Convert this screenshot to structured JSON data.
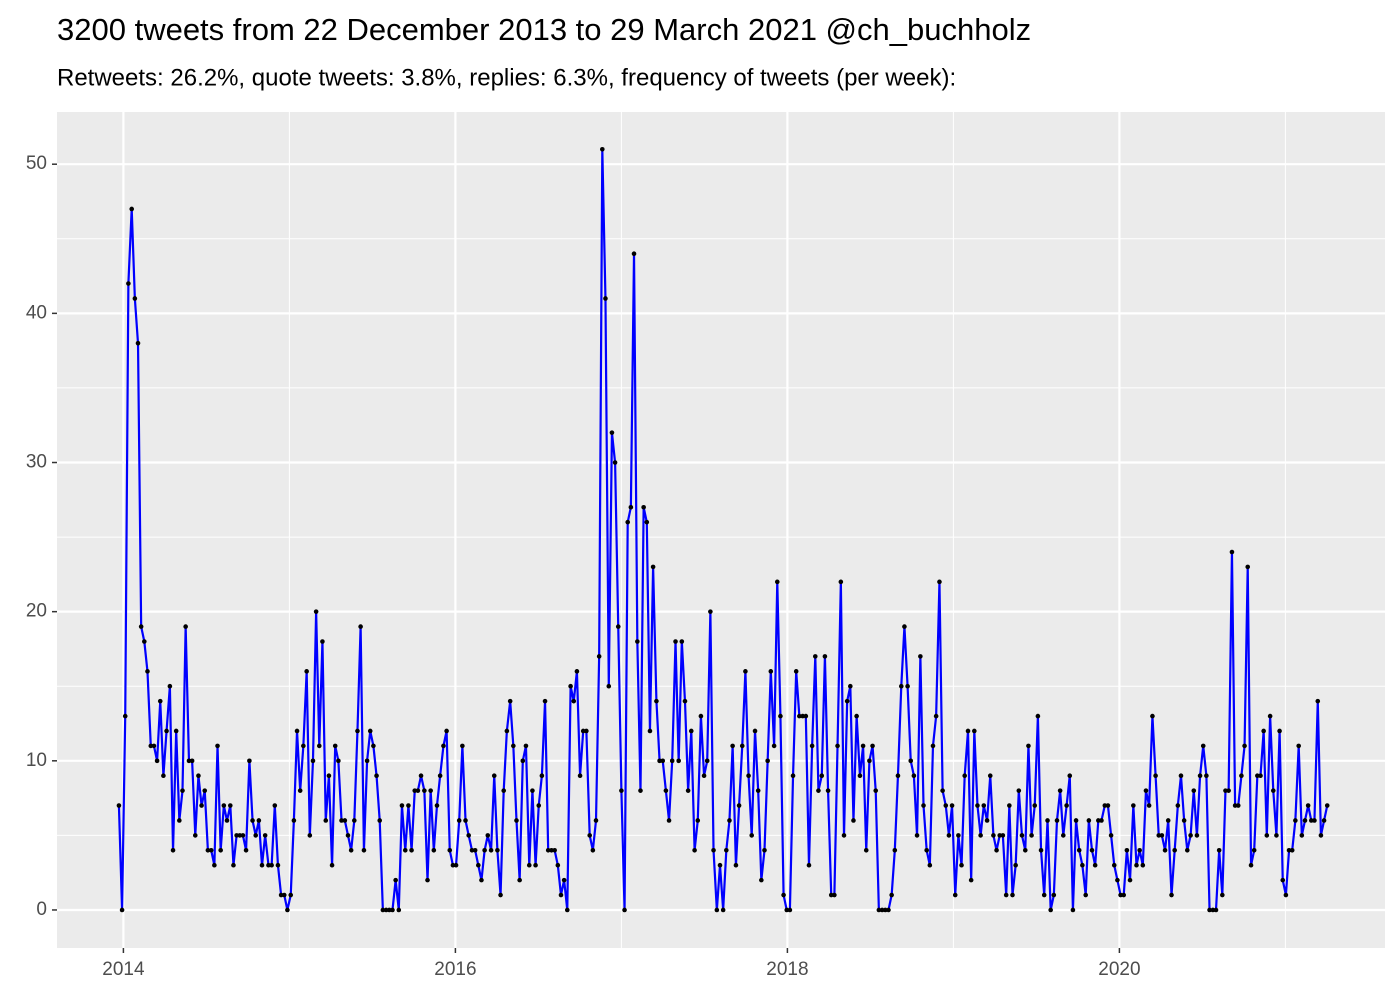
{
  "chart_data": {
    "type": "line",
    "title": "3200 tweets from 22 December 2013 to 29 March 2021 @ch_buchholz",
    "subtitle": "Retweets: 26.2%, quote tweets: 3.8%, replies: 6.3%, frequency of tweets (per week):",
    "color": "#0000ff",
    "marker_color": "#000000",
    "grid": true,
    "xlim": [
      2013.6,
      2021.6
    ],
    "xticks": [
      2014,
      2016,
      2018,
      2020
    ],
    "ylim": [
      -2.55,
      53.5
    ],
    "yticks": [
      0,
      10,
      20,
      30,
      40,
      50
    ],
    "x": [
      2013.973,
      2013.992,
      2014.011,
      2014.03,
      2014.05,
      2014.069,
      2014.088,
      2014.107,
      2014.126,
      2014.145,
      2014.165,
      2014.184,
      2014.203,
      2014.222,
      2014.241,
      2014.26,
      2014.28,
      2014.299,
      2014.318,
      2014.337,
      2014.356,
      2014.375,
      2014.395,
      2014.414,
      2014.433,
      2014.452,
      2014.471,
      2014.49,
      2014.509,
      2014.529,
      2014.548,
      2014.567,
      2014.586,
      2014.605,
      2014.624,
      2014.644,
      2014.663,
      2014.682,
      2014.701,
      2014.72,
      2014.739,
      2014.759,
      2014.778,
      2014.797,
      2014.816,
      2014.835,
      2014.854,
      2014.874,
      2014.893,
      2014.912,
      2014.931,
      2014.95,
      2014.969,
      2014.988,
      2015.008,
      2015.027,
      2015.046,
      2015.065,
      2015.084,
      2015.104,
      2015.123,
      2015.142,
      2015.161,
      2015.18,
      2015.199,
      2015.219,
      2015.238,
      2015.257,
      2015.276,
      2015.295,
      2015.314,
      2015.334,
      2015.353,
      2015.372,
      2015.391,
      2015.41,
      2015.429,
      2015.449,
      2015.468,
      2015.487,
      2015.506,
      2015.525,
      2015.544,
      2015.563,
      2015.583,
      2015.602,
      2015.621,
      2015.64,
      2015.659,
      2015.678,
      2015.698,
      2015.717,
      2015.736,
      2015.755,
      2015.774,
      2015.793,
      2015.813,
      2015.832,
      2015.851,
      2015.87,
      2015.889,
      2015.908,
      2015.928,
      2015.947,
      2015.966,
      2015.985,
      2016.004,
      2016.023,
      2016.042,
      2016.061,
      2016.08,
      2016.1,
      2016.119,
      2016.138,
      2016.157,
      2016.176,
      2016.195,
      2016.215,
      2016.234,
      2016.253,
      2016.272,
      2016.291,
      2016.31,
      2016.33,
      2016.349,
      2016.368,
      2016.387,
      2016.406,
      2016.425,
      2016.445,
      2016.464,
      2016.483,
      2016.502,
      2016.521,
      2016.54,
      2016.559,
      2016.579,
      2016.598,
      2016.617,
      2016.636,
      2016.655,
      2016.674,
      2016.694,
      2016.713,
      2016.732,
      2016.751,
      2016.77,
      2016.789,
      2016.809,
      2016.828,
      2016.847,
      2016.866,
      2016.885,
      2016.904,
      2016.924,
      2016.943,
      2016.962,
      2016.981,
      2017.0,
      2017.019,
      2017.038,
      2017.057,
      2017.076,
      2017.096,
      2017.115,
      2017.134,
      2017.153,
      2017.172,
      2017.191,
      2017.211,
      2017.23,
      2017.249,
      2017.268,
      2017.287,
      2017.306,
      2017.326,
      2017.345,
      2017.364,
      2017.383,
      2017.402,
      2017.421,
      2017.441,
      2017.46,
      2017.479,
      2017.498,
      2017.517,
      2017.536,
      2017.555,
      2017.575,
      2017.594,
      2017.613,
      2017.632,
      2017.651,
      2017.67,
      2017.69,
      2017.709,
      2017.728,
      2017.747,
      2017.766,
      2017.785,
      2017.805,
      2017.824,
      2017.843,
      2017.862,
      2017.881,
      2017.9,
      2017.92,
      2017.939,
      2017.958,
      2017.977,
      2017.996,
      2018.015,
      2018.034,
      2018.053,
      2018.072,
      2018.092,
      2018.111,
      2018.13,
      2018.149,
      2018.168,
      2018.187,
      2018.207,
      2018.226,
      2018.245,
      2018.264,
      2018.283,
      2018.302,
      2018.322,
      2018.341,
      2018.36,
      2018.379,
      2018.398,
      2018.417,
      2018.437,
      2018.456,
      2018.475,
      2018.494,
      2018.513,
      2018.532,
      2018.551,
      2018.571,
      2018.59,
      2018.609,
      2018.628,
      2018.647,
      2018.666,
      2018.686,
      2018.705,
      2018.724,
      2018.743,
      2018.762,
      2018.781,
      2018.801,
      2018.82,
      2018.839,
      2018.858,
      2018.877,
      2018.896,
      2018.916,
      2018.935,
      2018.954,
      2018.973,
      2018.992,
      2019.011,
      2019.03,
      2019.049,
      2019.068,
      2019.088,
      2019.107,
      2019.126,
      2019.145,
      2019.164,
      2019.183,
      2019.203,
      2019.222,
      2019.241,
      2019.26,
      2019.279,
      2019.298,
      2019.318,
      2019.337,
      2019.356,
      2019.375,
      2019.394,
      2019.413,
      2019.433,
      2019.452,
      2019.471,
      2019.49,
      2019.509,
      2019.528,
      2019.547,
      2019.567,
      2019.586,
      2019.605,
      2019.624,
      2019.643,
      2019.662,
      2019.682,
      2019.701,
      2019.72,
      2019.739,
      2019.758,
      2019.777,
      2019.797,
      2019.816,
      2019.835,
      2019.854,
      2019.873,
      2019.892,
      2019.912,
      2019.931,
      2019.95,
      2019.969,
      2019.988,
      2020.007,
      2020.026,
      2020.045,
      2020.064,
      2020.084,
      2020.103,
      2020.122,
      2020.141,
      2020.16,
      2020.179,
      2020.199,
      2020.218,
      2020.237,
      2020.256,
      2020.275,
      2020.294,
      2020.314,
      2020.333,
      2020.352,
      2020.371,
      2020.39,
      2020.409,
      2020.429,
      2020.448,
      2020.467,
      2020.486,
      2020.505,
      2020.524,
      2020.543,
      2020.563,
      2020.582,
      2020.601,
      2020.62,
      2020.639,
      2020.658,
      2020.678,
      2020.697,
      2020.716,
      2020.735,
      2020.754,
      2020.773,
      2020.793,
      2020.812,
      2020.831,
      2020.85,
      2020.869,
      2020.888,
      2020.908,
      2020.927,
      2020.946,
      2020.965,
      2020.984,
      2021.003,
      2021.022,
      2021.041,
      2021.06,
      2021.08,
      2021.099,
      2021.118,
      2021.137,
      2021.156,
      2021.175,
      2021.195,
      2021.214,
      2021.233,
      2021.252
    ],
    "values": [
      7,
      0,
      13,
      42,
      47,
      41,
      38,
      19,
      18,
      16,
      11,
      11,
      10,
      14,
      9,
      12,
      15,
      4,
      12,
      6,
      8,
      19,
      10,
      10,
      5,
      9,
      7,
      8,
      4,
      4,
      3,
      11,
      4,
      7,
      6,
      7,
      3,
      5,
      5,
      5,
      4,
      10,
      6,
      5,
      6,
      3,
      5,
      3,
      3,
      7,
      3,
      1,
      1,
      0,
      1,
      6,
      12,
      8,
      11,
      16,
      5,
      10,
      20,
      11,
      18,
      6,
      9,
      3,
      11,
      10,
      6,
      6,
      5,
      4,
      6,
      12,
      19,
      4,
      10,
      12,
      11,
      9,
      6,
      0,
      0,
      0,
      0,
      2,
      0,
      7,
      4,
      7,
      4,
      8,
      8,
      9,
      8,
      2,
      8,
      4,
      7,
      9,
      11,
      12,
      4,
      3,
      3,
      6,
      11,
      6,
      5,
      4,
      4,
      3,
      2,
      4,
      5,
      4,
      9,
      4,
      1,
      8,
      12,
      14,
      11,
      6,
      2,
      10,
      11,
      3,
      8,
      3,
      7,
      9,
      14,
      4,
      4,
      4,
      3,
      1,
      2,
      0,
      15,
      14,
      16,
      9,
      12,
      12,
      5,
      4,
      6,
      17,
      51,
      41,
      15,
      32,
      30,
      19,
      8,
      0,
      26,
      27,
      44,
      18,
      8,
      27,
      26,
      12,
      23,
      14,
      10,
      10,
      8,
      6,
      10,
      18,
      10,
      18,
      14,
      8,
      12,
      4,
      6,
      13,
      9,
      10,
      20,
      4,
      0,
      3,
      0,
      4,
      6,
      11,
      3,
      7,
      11,
      16,
      9,
      5,
      12,
      8,
      2,
      4,
      10,
      16,
      11,
      22,
      13,
      1,
      0,
      0,
      9,
      16,
      13,
      13,
      13,
      3,
      11,
      17,
      8,
      9,
      17,
      8,
      1,
      1,
      11,
      22,
      5,
      14,
      15,
      6,
      13,
      9,
      11,
      4,
      10,
      11,
      8,
      0,
      0,
      0,
      0,
      1,
      4,
      9,
      15,
      19,
      15,
      10,
      9,
      5,
      17,
      7,
      4,
      3,
      11,
      13,
      22,
      8,
      7,
      5,
      7,
      1,
      5,
      3,
      9,
      12,
      2,
      12,
      7,
      5,
      7,
      6,
      9,
      5,
      4,
      5,
      5,
      1,
      7,
      1,
      3,
      8,
      5,
      4,
      11,
      5,
      7,
      13,
      4,
      1,
      6,
      0,
      1,
      6,
      8,
      5,
      7,
      9,
      0,
      6,
      4,
      3,
      1,
      6,
      4,
      3,
      6,
      6,
      7,
      7,
      5,
      3,
      2,
      1,
      1,
      4,
      2,
      7,
      3,
      4,
      3,
      8,
      7,
      13,
      9,
      5,
      5,
      4,
      6,
      1,
      4,
      7,
      9,
      6,
      4,
      5,
      8,
      5,
      9,
      11,
      9,
      0,
      0,
      0,
      4,
      1,
      8,
      8,
      24,
      7,
      7,
      9,
      11,
      23,
      3,
      4,
      9,
      9,
      12,
      5,
      13,
      8,
      5,
      12,
      2,
      1,
      4,
      4,
      6,
      11,
      5,
      6,
      7,
      6,
      6,
      14,
      5,
      6,
      7
    ]
  }
}
